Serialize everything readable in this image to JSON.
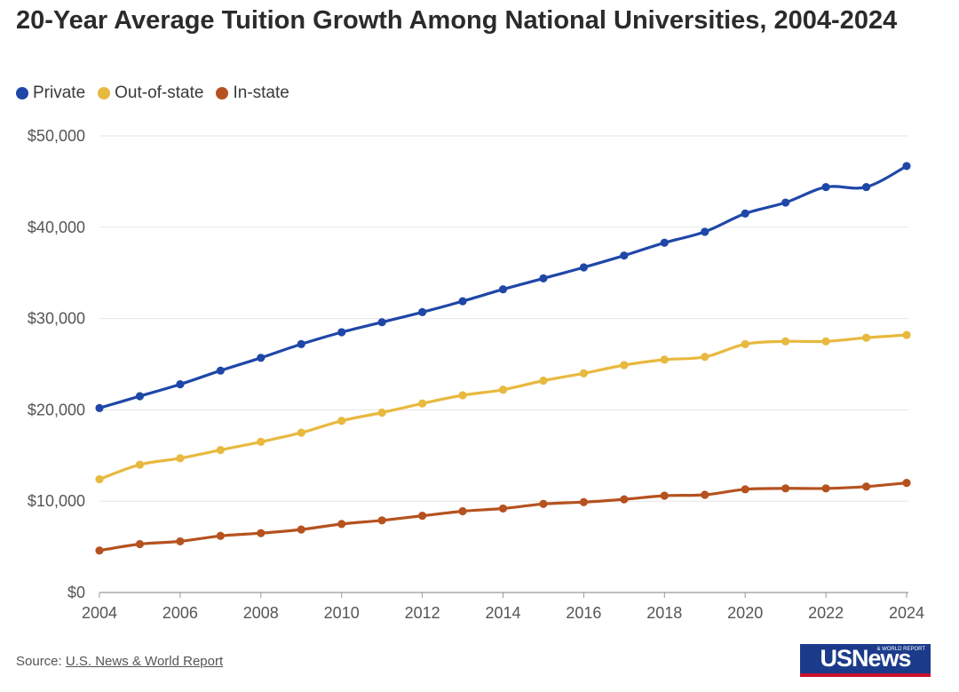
{
  "chart_data": {
    "type": "line",
    "title": "20-Year Average Tuition Growth Among National Universities, 2004-2024",
    "xlabel": "",
    "ylabel": "",
    "x": [
      2004,
      2005,
      2006,
      2007,
      2008,
      2009,
      2010,
      2011,
      2012,
      2013,
      2014,
      2015,
      2016,
      2017,
      2018,
      2019,
      2020,
      2021,
      2022,
      2023,
      2024
    ],
    "xticks": [
      "2004",
      "2006",
      "2008",
      "2010",
      "2012",
      "2014",
      "2016",
      "2018",
      "2020",
      "2022",
      "2024"
    ],
    "yticks": [
      "$0",
      "$10,000",
      "$20,000",
      "$30,000",
      "$40,000",
      "$50,000"
    ],
    "ylim": [
      0,
      50000
    ],
    "grid": true,
    "legend_position": "top-left",
    "series": [
      {
        "name": "Private",
        "color": "#1f47a8",
        "values": [
          20200,
          21500,
          22800,
          24300,
          25700,
          27200,
          28500,
          29600,
          30700,
          31900,
          33200,
          34400,
          35600,
          36900,
          38300,
          39500,
          41500,
          42700,
          44400,
          44400,
          46700
        ]
      },
      {
        "name": "Out-of-state",
        "color": "#e8b93f",
        "values": [
          12400,
          14000,
          14700,
          15600,
          16500,
          17500,
          18800,
          19700,
          20700,
          21600,
          22200,
          23200,
          24000,
          24900,
          25500,
          25800,
          27200,
          27500,
          27500,
          27900,
          28200
        ]
      },
      {
        "name": "In-state",
        "color": "#b5521f",
        "values": [
          4600,
          5300,
          5600,
          6200,
          6500,
          6900,
          7500,
          7900,
          8400,
          8900,
          9200,
          9700,
          9900,
          10200,
          10600,
          10700,
          11300,
          11400,
          11400,
          11600,
          12000
        ]
      }
    ]
  },
  "footer": {
    "source_label": "Source:",
    "source_link": "U.S. News & World Report",
    "logo_text": "USNews",
    "logo_subtext": "& WORLD REPORT"
  }
}
